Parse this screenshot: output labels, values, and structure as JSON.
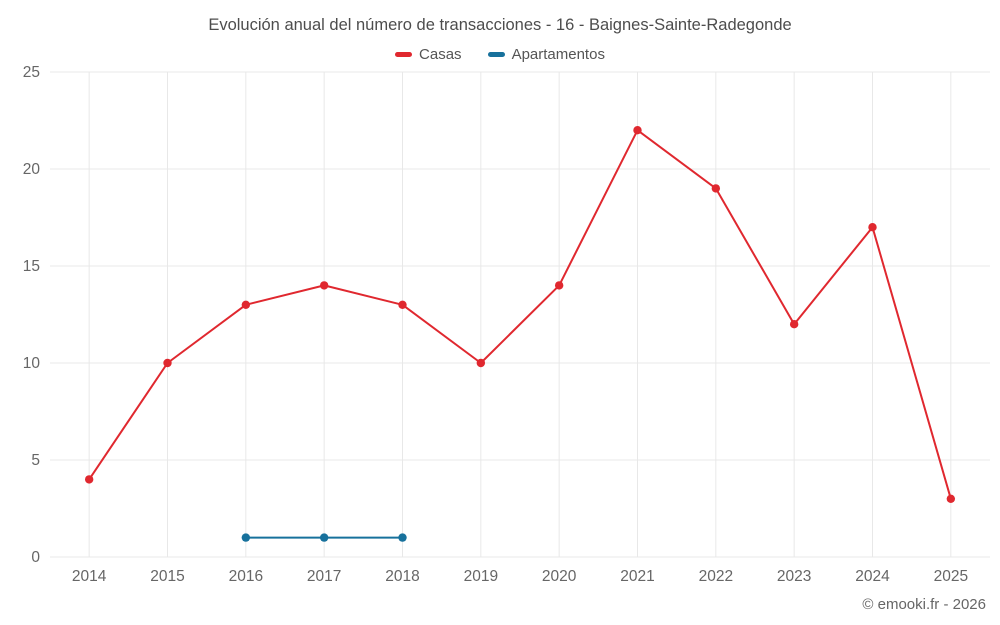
{
  "title": "Evolución anual del número de transacciones - 16 - Baignes-Sainte-Radegonde",
  "footer": "© emooki.fr - 2026",
  "chart_data": {
    "type": "line",
    "title": "Evolución anual del número de transacciones - 16 - Baignes-Sainte-Radegonde",
    "x": [
      2014,
      2015,
      2016,
      2017,
      2018,
      2019,
      2020,
      2021,
      2022,
      2023,
      2024,
      2025
    ],
    "series": [
      {
        "name": "Casas",
        "color": "#e0282f",
        "values": [
          4,
          10,
          13,
          14,
          13,
          10,
          14,
          22,
          19,
          12,
          17,
          3
        ]
      },
      {
        "name": "Apartamentos",
        "color": "#17719c",
        "x": [
          2016,
          2017,
          2018
        ],
        "values": [
          1,
          1,
          1
        ]
      }
    ],
    "xlabel": "",
    "ylabel": "",
    "ylim": [
      0,
      25
    ],
    "yticks": [
      0,
      5,
      10,
      15,
      20,
      25
    ],
    "grid": true,
    "legend_position": "top",
    "grid_color": "#e8e8e8",
    "tick_label_color": "#666666"
  }
}
